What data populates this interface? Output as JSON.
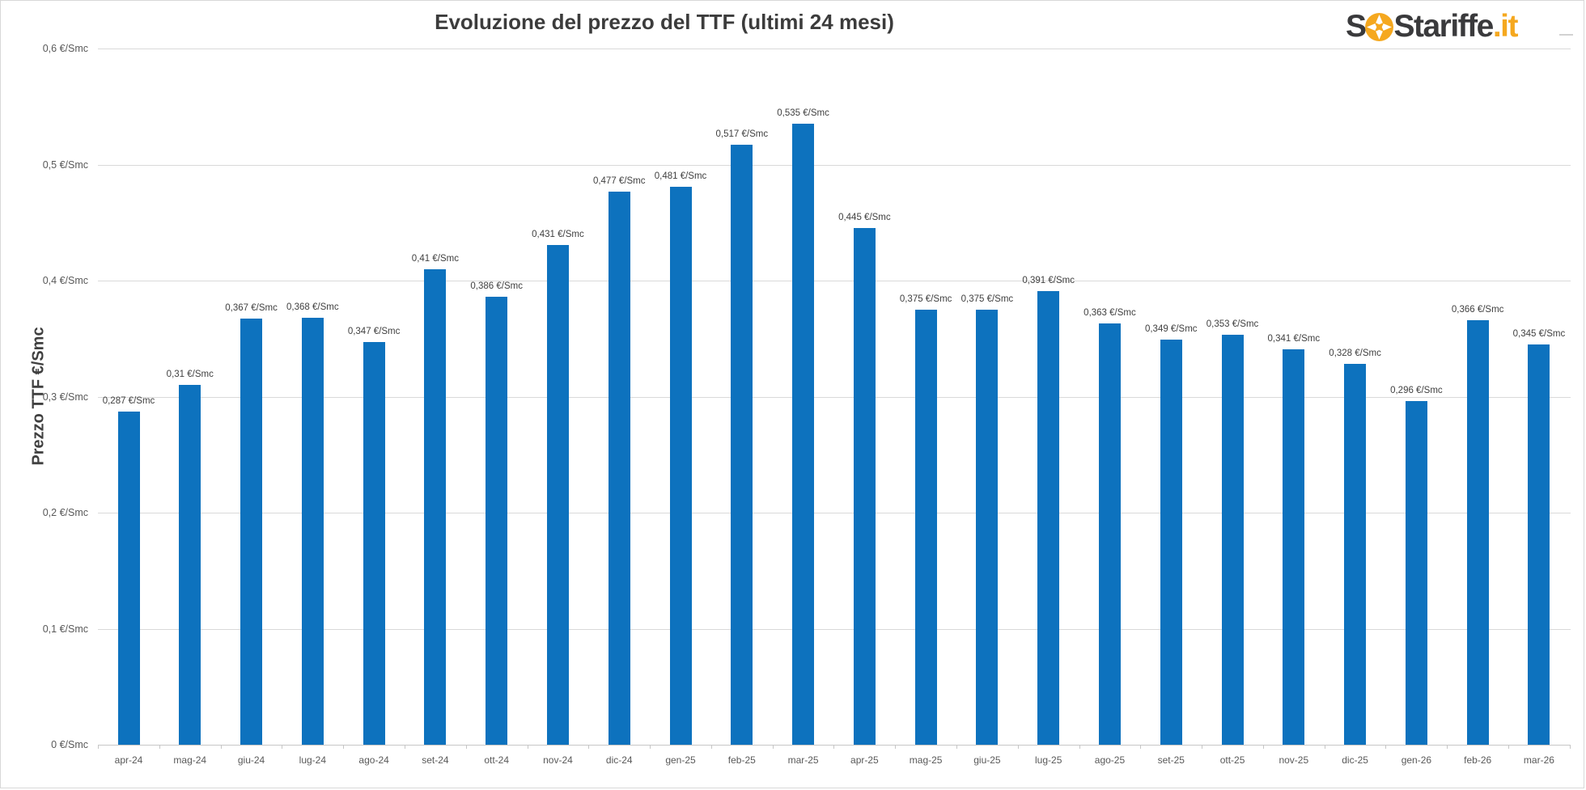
{
  "header": {
    "logo": {
      "part1": "S",
      "part2": "Stariffe",
      "part3": ".it",
      "icon": "lifebuoy-icon",
      "dark_color": "#3a3a3c",
      "accent_color": "#f5a81f"
    }
  },
  "chart_data": {
    "type": "bar",
    "title": "Evoluzione del prezzo del TTF (ultimi 24 mesi)",
    "xlabel": "",
    "ylabel": "Prezzo TTF €/Smc",
    "unit": "€/Smc",
    "ylim": [
      0,
      0.6
    ],
    "grid": true,
    "legend": false,
    "bar_color": "#0d72be",
    "categories": [
      "apr-24",
      "mag-24",
      "giu-24",
      "lug-24",
      "ago-24",
      "set-24",
      "ott-24",
      "nov-24",
      "dic-24",
      "gen-25",
      "feb-25",
      "mar-25",
      "apr-25",
      "mag-25",
      "giu-25",
      "lug-25",
      "ago-25",
      "set-25",
      "ott-25",
      "nov-25",
      "dic-25",
      "gen-26",
      "feb-26",
      "mar-26"
    ],
    "values": [
      0.287,
      0.31,
      0.367,
      0.368,
      0.347,
      0.41,
      0.386,
      0.431,
      0.477,
      0.481,
      0.517,
      0.535,
      0.445,
      0.375,
      0.375,
      0.391,
      0.363,
      0.349,
      0.353,
      0.341,
      0.328,
      0.296,
      0.366,
      0.345
    ],
    "value_labels": [
      "0,287 €/Smc",
      "0,31 €/Smc",
      "0,367 €/Smc",
      "0,368 €/Smc",
      "0,347 €/Smc",
      "0,41 €/Smc",
      "0,386 €/Smc",
      "0,431 €/Smc",
      "0,477 €/Smc",
      "0,481 €/Smc",
      "0,517 €/Smc",
      "0,535 €/Smc",
      "0,445 €/Smc",
      "0,375 €/Smc",
      "0,375 €/Smc",
      "0,391 €/Smc",
      "0,363 €/Smc",
      "0,349 €/Smc",
      "0,353 €/Smc",
      "0,341 €/Smc",
      "0,328 €/Smc",
      "0,296 €/Smc",
      "0,366 €/Smc",
      "0,345 €/Smc"
    ],
    "y_ticks": [
      {
        "value": 0.6,
        "label": "0,6 €/Smc"
      },
      {
        "value": 0.5,
        "label": "0,5 €/Smc"
      },
      {
        "value": 0.4,
        "label": "0,4 €/Smc"
      },
      {
        "value": 0.3,
        "label": "0,3 €/Smc"
      },
      {
        "value": 0.2,
        "label": "0,2 €/Smc"
      },
      {
        "value": 0.1,
        "label": "0,1 €/Smc"
      },
      {
        "value": 0,
        "label": "0 €/Smc"
      }
    ]
  }
}
